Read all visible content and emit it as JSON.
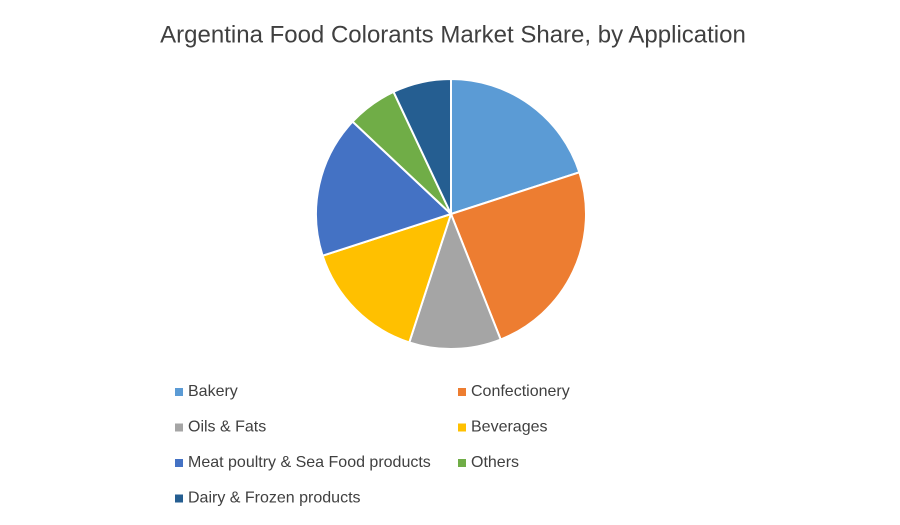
{
  "chart_data": {
    "type": "pie",
    "title": "Argentina Food Colorants Market Share, by Application",
    "categories": [
      "Bakery",
      "Confectionery",
      "Oils & Fats",
      "Beverages",
      "Meat poultry & Sea Food products",
      "Others",
      "Dairy & Frozen products"
    ],
    "values": [
      20,
      24,
      11,
      15,
      17,
      6,
      7
    ],
    "colors": [
      "#5b9bd5",
      "#ed7d31",
      "#a5a5a5",
      "#ffc000",
      "#4472c4",
      "#70ad47",
      "#255e91"
    ]
  }
}
